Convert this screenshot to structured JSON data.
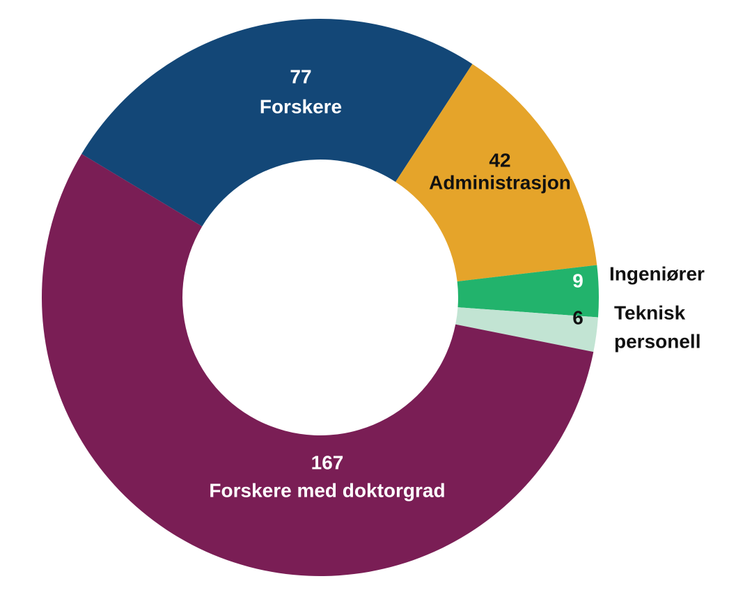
{
  "chart_data": {
    "type": "pie",
    "variant": "donut",
    "title": "",
    "legend": "none",
    "slices": [
      {
        "label": "Forskere",
        "value": 77,
        "color": "#134777",
        "value_color": "#ffffff",
        "label_color": "#ffffff"
      },
      {
        "label": "Administrasjon",
        "value": 42,
        "color": "#e5a42a",
        "value_color": "#111111",
        "label_color": "#111111"
      },
      {
        "label": "Ingeniører",
        "value": 9,
        "color": "#22b36c",
        "value_color": "#ffffff",
        "label_color": "#111111"
      },
      {
        "label": "Teknisk personell",
        "label_lines": [
          "Teknisk",
          "personell"
        ],
        "value": 6,
        "color": "#c2e4d3",
        "value_color": "#111111",
        "label_color": "#111111"
      },
      {
        "label": "Forskere med doktorgrad",
        "value": 167,
        "color": "#7a1e55",
        "value_color": "#ffffff",
        "label_color": "#ffffff"
      }
    ]
  }
}
